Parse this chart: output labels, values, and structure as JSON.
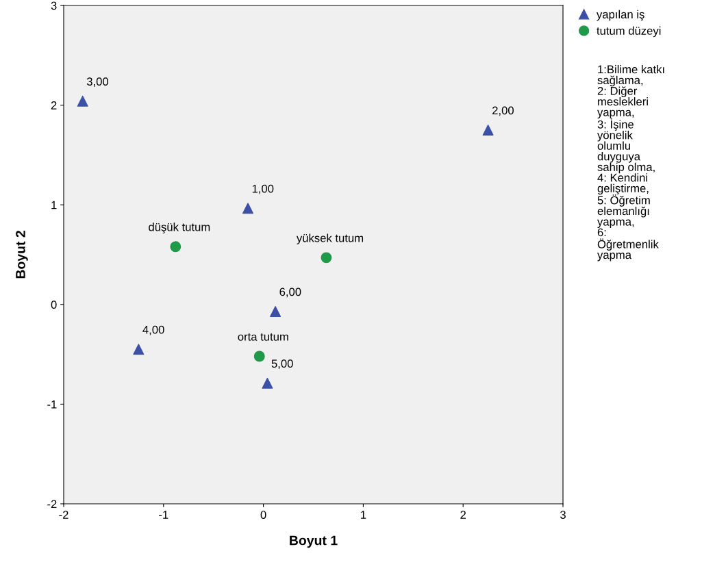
{
  "chart_data": {
    "type": "scatter",
    "xlabel": "Boyut 1",
    "ylabel": "Boyut 2",
    "xlim": [
      -2,
      3
    ],
    "ylim": [
      -2,
      3
    ],
    "xticks": [
      -2,
      -1,
      0,
      1,
      2,
      3
    ],
    "yticks": [
      -2,
      -1,
      0,
      1,
      2,
      3
    ],
    "grid": false,
    "legend": "top right",
    "series": [
      {
        "name": "yapılan iş",
        "color": "#3c50a8",
        "marker": "triangle",
        "x": [
          -0.155,
          2.25,
          -1.81,
          -1.25,
          0.04,
          0.12
        ],
        "values": [
          0.965,
          1.75,
          2.04,
          -0.45,
          -0.79,
          -0.07
        ]
      },
      {
        "name": "tutum düzeyi",
        "color": "#1f9a48",
        "marker": "circle",
        "x": [
          -0.88,
          0.63,
          -0.04
        ],
        "values": [
          0.58,
          0.47,
          -0.52
        ]
      }
    ],
    "annotations": [
      {
        "text": "1,00",
        "x": -0.155,
        "y": 0.965
      },
      {
        "text": "2,00",
        "x": 2.25,
        "y": 1.75
      },
      {
        "text": "3,00",
        "x": -1.81,
        "y": 2.04
      },
      {
        "text": "4,00",
        "x": -1.25,
        "y": -0.45
      },
      {
        "text": "5,00",
        "x": 0.04,
        "y": -0.79
      },
      {
        "text": "6,00",
        "x": 0.12,
        "y": -0.07
      },
      {
        "text": "düşük tutum",
        "x": -0.88,
        "y": 0.58
      },
      {
        "text": "yüksek tutum",
        "x": 0.63,
        "y": 0.47
      },
      {
        "text": "orta tutum",
        "x": -0.04,
        "y": -0.52
      },
      "1:Bilime katkı\nsağlama,\n2: Diğer\nmeslekleri\nyapma,\n3: İşine\nyönelik\nolumlu\nduyguya\nsahip olma,\n4: Kendini\ngeliştirme,\n5: Öğretim\nelemanlığı\nyapma,\n6:\nÖğretmenlik\nyapma"
    ]
  }
}
